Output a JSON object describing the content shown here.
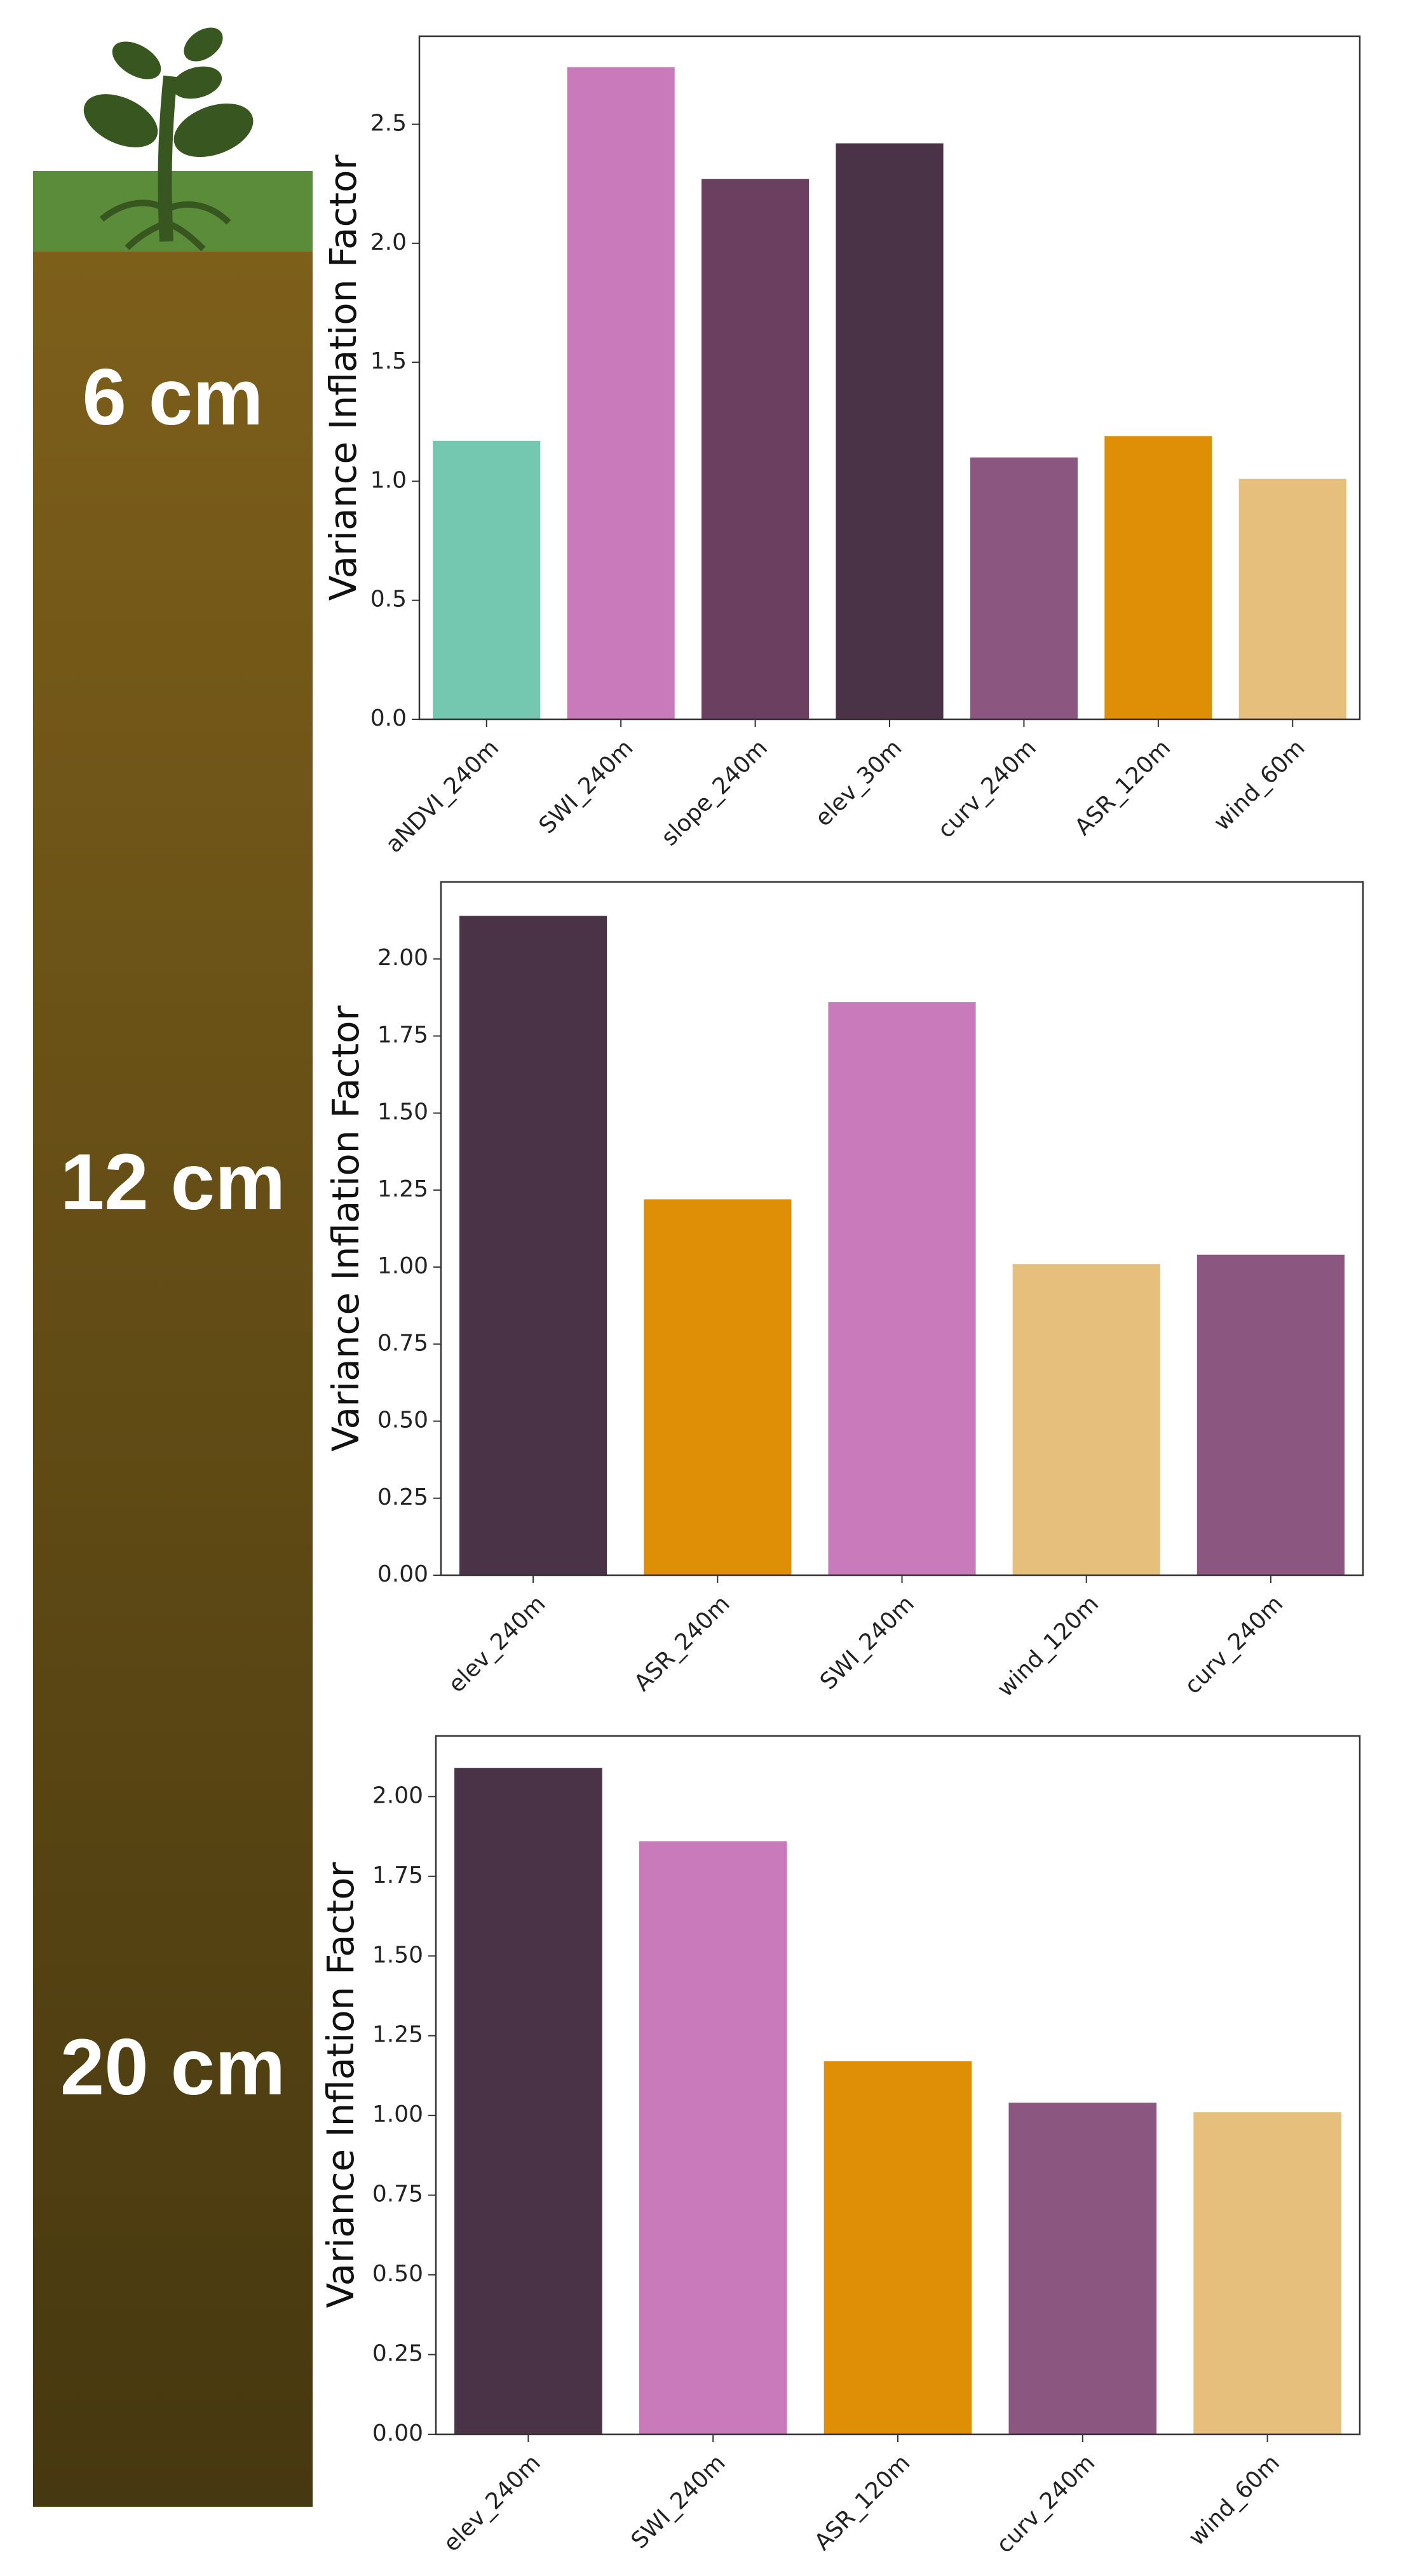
{
  "chart_data": [
    {
      "type": "bar",
      "annotation": "6 cm",
      "ylabel": "Variance Inflation Factor",
      "categories": [
        "aNDVI_240m",
        "SWI_240m",
        "slope_240m",
        "elev_30m",
        "curv_240m",
        "ASR_120m",
        "wind_60m"
      ],
      "values": [
        1.17,
        2.74,
        2.27,
        2.42,
        1.1,
        1.19,
        1.01
      ],
      "colors": [
        "#74c8b0",
        "#c97aba",
        "#6b3f60",
        "#4a3346",
        "#8b5680",
        "#de8f05",
        "#e6bf7c"
      ],
      "ylim": [
        0,
        2.87
      ],
      "yticks": [
        {
          "value": 0,
          "label": "0.0"
        },
        0.5,
        {
          "value": 1,
          "label": "1.0"
        },
        1.5,
        {
          "value": 2,
          "label": "2.0"
        },
        2.5
      ]
    },
    {
      "type": "bar",
      "annotation": "12 cm",
      "ylabel": "Variance Inflation Factor",
      "categories": [
        "elev_240m",
        "ASR_240m",
        "SWI_240m",
        "wind_120m",
        "curv_240m"
      ],
      "values": [
        2.14,
        1.22,
        1.86,
        1.01,
        1.04
      ],
      "colors": [
        "#4a3346",
        "#de8f05",
        "#c97aba",
        "#e6bf7c",
        "#8b5680"
      ],
      "ylim": [
        0,
        2.25
      ],
      "yticks": [
        {
          "value": 0,
          "label": "0.00"
        },
        0.25,
        {
          "value": 0.5,
          "label": "0.50"
        },
        0.75,
        {
          "value": 1,
          "label": "1.00"
        },
        1.25,
        {
          "value": 1.5,
          "label": "1.50"
        },
        1.75,
        {
          "value": 2,
          "label": "2.00"
        }
      ]
    },
    {
      "type": "bar",
      "annotation": "20 cm",
      "ylabel": "Variance Inflation Factor",
      "categories": [
        "elev_240m",
        "SWI_240m",
        "ASR_120m",
        "curv_240m",
        "wind_60m"
      ],
      "values": [
        2.09,
        1.86,
        1.17,
        1.04,
        1.01
      ],
      "colors": [
        "#4a3346",
        "#c97aba",
        "#de8f05",
        "#8b5680",
        "#e6bf7c"
      ],
      "ylim": [
        0,
        2.19
      ],
      "yticks": [
        {
          "value": 0,
          "label": "0.00"
        },
        0.25,
        {
          "value": 0.5,
          "label": "0.50"
        },
        0.75,
        {
          "value": 1,
          "label": "1.00"
        },
        1.25,
        {
          "value": 1.5,
          "label": "1.50"
        },
        1.75,
        {
          "value": 2,
          "label": "2.00"
        }
      ]
    }
  ]
}
